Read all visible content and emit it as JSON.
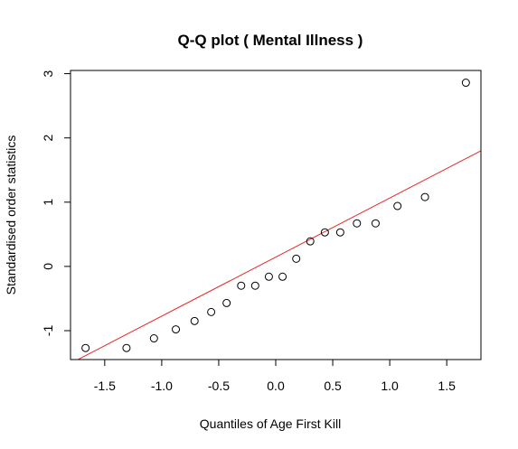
{
  "chart_data": {
    "type": "scatter",
    "title": "Q-Q plot ( Mental Illness )",
    "xlabel": "Quantiles of Age First Kill",
    "ylabel": "Standardised order statistics",
    "xlim": [
      -1.8,
      1.8
    ],
    "ylim": [
      -1.45,
      3.05
    ],
    "xticks": [
      -1.5,
      -1.0,
      -0.5,
      0.0,
      0.5,
      1.0,
      1.5
    ],
    "xtick_labels": [
      "-1.5",
      "-1.0",
      "-0.5",
      "0.0",
      "0.5",
      "1.0",
      "1.5"
    ],
    "yticks": [
      -1,
      0,
      1,
      2,
      3
    ],
    "ytick_labels": [
      "-1",
      "0",
      "1",
      "2",
      "3"
    ],
    "grid": false,
    "points": {
      "x": [
        -1.668,
        -1.309,
        -1.068,
        -0.876,
        -0.712,
        -0.566,
        -0.431,
        -0.303,
        -0.18,
        -0.06,
        0.06,
        0.18,
        0.303,
        0.431,
        0.566,
        0.712,
        0.876,
        1.068,
        1.309,
        1.668
      ],
      "y": [
        -1.27,
        -1.27,
        -1.12,
        -0.98,
        -0.85,
        -0.71,
        -0.57,
        -0.3,
        -0.3,
        -0.16,
        -0.16,
        0.12,
        0.39,
        0.53,
        0.53,
        0.67,
        0.67,
        0.94,
        1.08,
        2.86
      ],
      "marker": "open-circle",
      "color": "#000000"
    },
    "reference_line": {
      "points": [
        [
          -1.8,
          -1.51
        ],
        [
          1.8,
          1.8
        ]
      ],
      "color": "#e32b2b"
    }
  }
}
